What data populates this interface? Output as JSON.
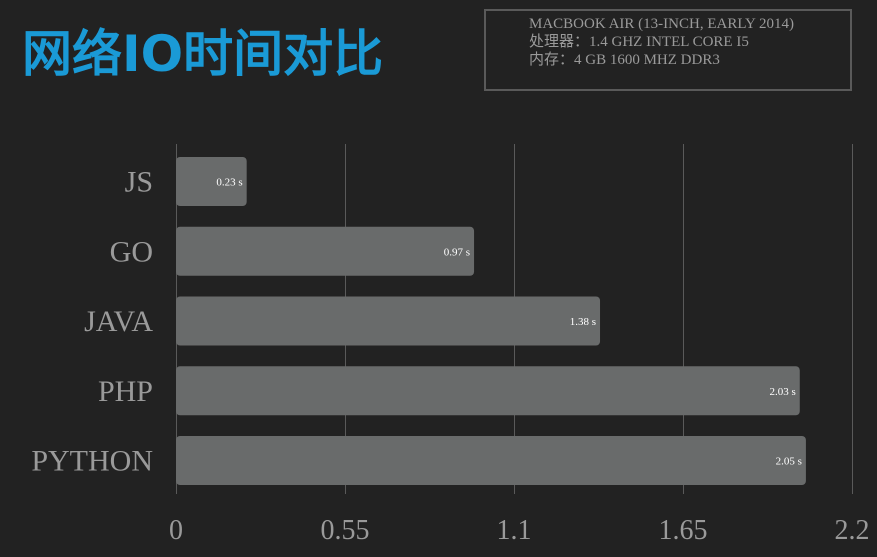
{
  "title": "网络IO时间对比",
  "spec": {
    "line1": "MACBOOK AIR (13-INCH, EARLY 2014)",
    "line2": "处理器：1.4 GHZ INTEL CORE I5",
    "line3": "内存：4 GB 1600 MHZ DDR3"
  },
  "colors": {
    "background": "#222222",
    "title": "#1a9ad6",
    "bar": "#696b6b",
    "grid": "#5a5a5a",
    "category_label": "#9a9a9a",
    "tick_label": "#9a9a9a",
    "data_label": "#ffffff"
  },
  "chart_data": {
    "type": "bar",
    "orientation": "horizontal",
    "categories": [
      "JS",
      "GO",
      "JAVA",
      "PHP",
      "PYTHON"
    ],
    "values": [
      0.23,
      0.97,
      1.38,
      2.03,
      2.05
    ],
    "data_labels": [
      "0.23 s",
      "0.97 s",
      "1.38 s",
      "2.03 s",
      "2.05 s"
    ],
    "xticks": [
      0,
      0.55,
      1.1,
      1.65,
      2.2
    ],
    "xtick_labels": [
      "0",
      "0.55",
      "1.1",
      "1.65",
      "2.2"
    ],
    "xlim": [
      0,
      2.2
    ],
    "grid": "vertical"
  }
}
